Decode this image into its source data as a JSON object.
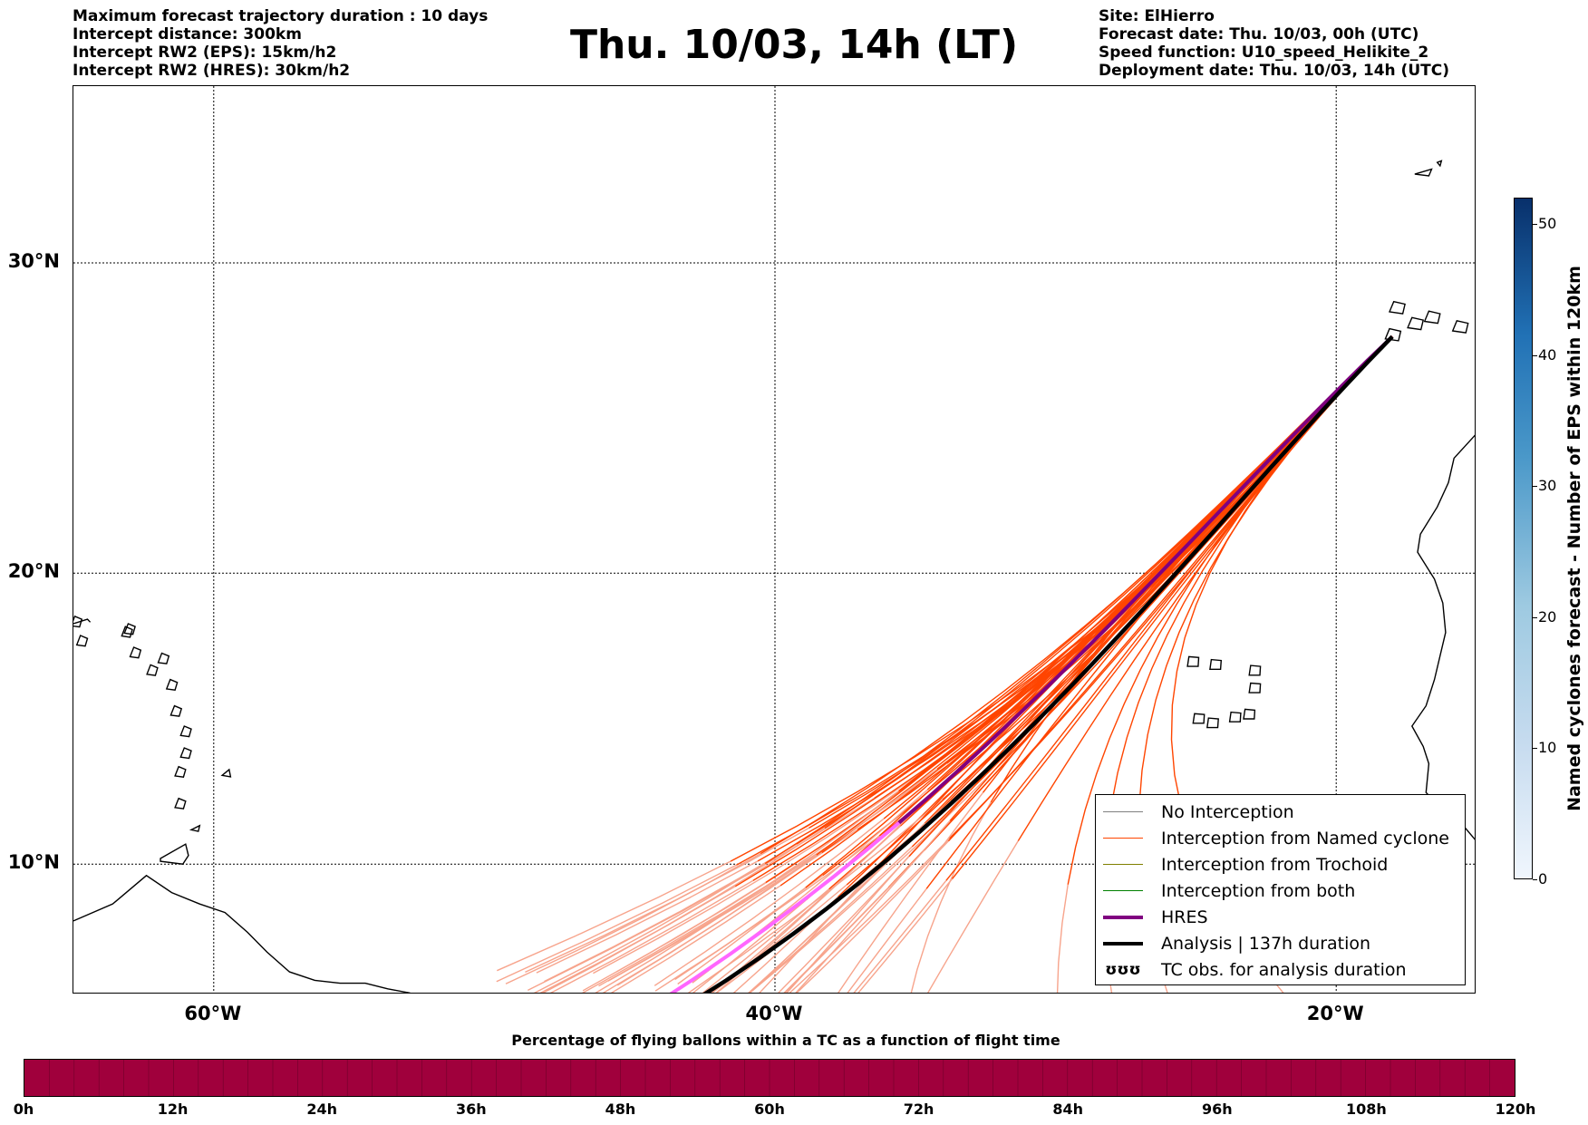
{
  "header": {
    "left_lines": [
      "Maximum forecast trajectory duration : 10 days",
      "Intercept distance: 300km",
      "Intercept RW2 (EPS):  15km/h2",
      "Intercept RW2 (HRES): 30km/h2"
    ],
    "title": "Thu. 10/03, 14h (LT)",
    "right_lines": [
      "Site: ElHierro",
      "Forecast date: Thu. 10/03, 00h (UTC)",
      "Speed function: U10_speed_Helikite_2",
      "Deployment date: Thu. 10/03, 14h (UTC)"
    ]
  },
  "map": {
    "lat_labels": [
      {
        "text": "30°N",
        "lat": 30
      },
      {
        "text": "20°N",
        "lat": 20
      },
      {
        "text": "10°N",
        "lat": 10
      }
    ],
    "lon_labels": [
      {
        "text": "60°W",
        "lon": -60
      },
      {
        "text": "40°W",
        "lon": -40
      },
      {
        "text": "20°W",
        "lon": -20
      }
    ],
    "extent": {
      "lon_min": -65,
      "lon_max": -15,
      "lat_min": 5.4,
      "lat_max": 35.3
    },
    "site": {
      "name": "ElHierro",
      "lon": -18.0,
      "lat": 27.7
    },
    "colors": {
      "named_cyclone": "#ff4500",
      "named_cyclone_faded": "#f7a48c",
      "hres": "#800080",
      "hres_faded": "#ff66ff",
      "analysis": "#000000",
      "coast": "#000000"
    }
  },
  "legend": {
    "items": [
      {
        "label": "No Interception",
        "color": "#808080",
        "width": 1
      },
      {
        "label": "Interception from Named cyclone",
        "color": "#ff4500",
        "width": 1.5
      },
      {
        "label": "Interception from Trochoid",
        "color": "#808000",
        "width": 1
      },
      {
        "label": "Interception from both",
        "color": "#008000",
        "width": 1
      },
      {
        "label": "HRES",
        "color": "#800080",
        "width": 4
      },
      {
        "label": "Analysis | 137h duration",
        "color": "#000000",
        "width": 4
      }
    ],
    "tc_obs": {
      "symbol": "ʊʊʊ",
      "label": "TC obs. for analysis duration"
    }
  },
  "colorbar_vertical": {
    "label": "Named cyclones forecast - Number of EPS within 120km",
    "ticks": [
      "0",
      "10",
      "20",
      "30",
      "40",
      "50"
    ],
    "max": 52
  },
  "colorbar_horizontal": {
    "title": "Percentage of flying ballons within a TC as a function of flight time",
    "ticks": [
      "0h",
      "12h",
      "24h",
      "36h",
      "48h",
      "60h",
      "72h",
      "84h",
      "96h",
      "108h",
      "120h"
    ],
    "color": "#a0003c"
  }
}
